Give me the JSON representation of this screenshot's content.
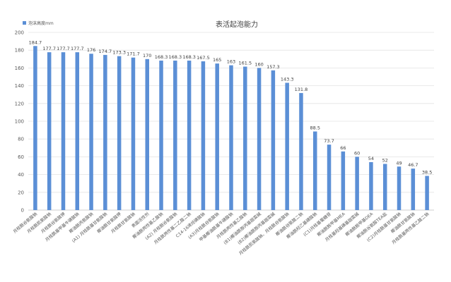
{
  "chart_data": {
    "type": "bar",
    "title": "表活起泡能力",
    "legend": [
      {
        "name": "泡沫高度mm",
        "color": "#5b8fd6"
      }
    ],
    "legend_position": "top-left",
    "ylim": [
      0,
      200
    ],
    "yticks": [
      0,
      20,
      40,
      60,
      80,
      100,
      120,
      140,
      160,
      180,
      200
    ],
    "grid": true,
    "bar_color": "#5b8fd6",
    "categories": [
      "月桂酰谷氨酸钠",
      "月桂酰肌氨酸钠",
      "月桂酰谷氨酸钾",
      "月桂酰基甲基牛磺酸钠",
      "椰油酰丙氨酸钠",
      "(A1) 月桂酰基甘氨酸钠",
      "椰油酰甘氨酸钾",
      "月桂酰甘氨酸钠",
      "表面活性剂",
      "椰油酰两性基乙酸钠",
      "(A2) 月桂酰谷氨酸钠",
      "月桂酰两性基二乙酸二钠",
      "C14-16烯烃磺酸钠",
      "(A3)月桂酰谷氨酸钠",
      "甲基椰油酰基牛磺酸钠",
      "月桂酰两性基乙酸钠",
      "(B1)椰油酰胺丙基甜菜碱",
      "(B2)椰油酰胺丙基甜菜碱",
      "月桂酰肌氨酸钠、月桂酰谷氨酸钠",
      "椰油酰谷氨酸二钠",
      "椰油酰羟乙基磺酸钠",
      "(C1)月桂基葡糖苷",
      "椰油酰胺甲基MEA",
      "月桂基羟基磺基甜菜碱",
      "椰油酰胺甲基DEA",
      "椰油酰谷氨酸TEA盐",
      "(C2)月桂酰基甘氨酸钠",
      "椰油酰甘氨酸钠",
      "月桂酰基两性基乙酸二钠"
    ],
    "values": [
      184.7,
      177.7,
      177.7,
      177.7,
      176,
      174.7,
      173.3,
      171.7,
      170,
      168.3,
      168.3,
      168.3,
      167.5,
      165,
      163,
      161.5,
      160,
      157.3,
      143.3,
      131.8,
      88.5,
      73.7,
      66,
      60,
      54,
      52,
      49,
      46.7,
      38.5
    ],
    "data_labels": [
      "184.7",
      "177.7",
      "177.7",
      "177.7",
      "176",
      "174.7",
      "173.3",
      "171.7",
      "170",
      "168.3",
      "168.3",
      "168.3",
      "167.5",
      "165",
      "163",
      "161.5",
      "160",
      "157.3",
      "143.3",
      "131.8",
      "88.5",
      "73.7",
      "66",
      "60",
      "54",
      "52",
      "49",
      "46.7",
      "38.5"
    ]
  }
}
